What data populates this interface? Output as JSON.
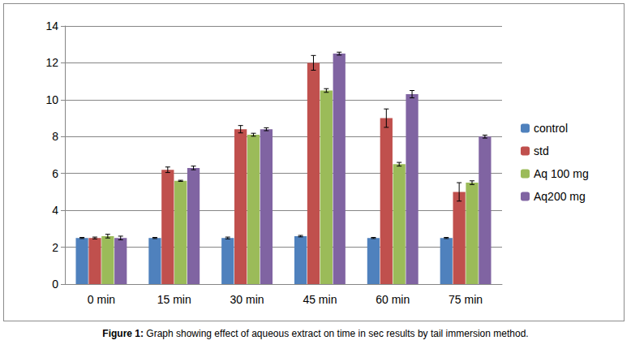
{
  "chart_data": {
    "type": "bar",
    "caption": "Figure 1: Graph showing effect of aqueous extract on time in sec results by tail immersion method.",
    "categories": [
      "0 min",
      "15 min",
      "30 min",
      "45 min",
      "60 min",
      "75 min"
    ],
    "series": [
      {
        "name": "control",
        "color": "#4f81bd",
        "values": [
          2.5,
          2.5,
          2.5,
          2.6,
          2.5,
          2.5
        ],
        "errors": [
          0.03,
          0.03,
          0.05,
          0.04,
          0.03,
          0.03
        ]
      },
      {
        "name": "std",
        "color": "#c0504d",
        "values": [
          2.5,
          6.2,
          8.4,
          12.0,
          9.0,
          5.0
        ],
        "errors": [
          0.05,
          0.15,
          0.2,
          0.4,
          0.5,
          0.5
        ]
      },
      {
        "name": "Aq 100 mg",
        "color": "#9bbb59",
        "values": [
          2.6,
          5.6,
          8.1,
          10.5,
          6.5,
          5.5
        ],
        "errors": [
          0.1,
          0.03,
          0.08,
          0.1,
          0.1,
          0.1
        ]
      },
      {
        "name": "Aq200 mg",
        "color": "#8064a2",
        "values": [
          2.5,
          6.3,
          8.4,
          12.5,
          10.3,
          8.0
        ],
        "errors": [
          0.1,
          0.1,
          0.08,
          0.08,
          0.2,
          0.08
        ]
      }
    ],
    "ylim": [
      0,
      14
    ],
    "yticks": [
      0,
      2,
      4,
      6,
      8,
      10,
      12,
      14
    ],
    "grid": true,
    "legend": "right"
  }
}
